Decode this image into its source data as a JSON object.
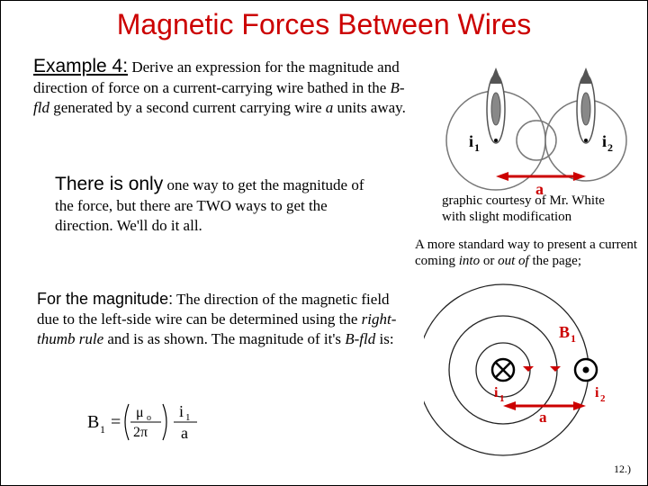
{
  "title": "Magnetic Forces Between Wires",
  "example": {
    "lead": "Example 4:",
    "body_html": "Derive an expression for the magnitude and direction of force on a current-carrying wire bathed in the <i>B-fld</i> generated by a second current carrying wire <i>a</i> units away."
  },
  "answer": {
    "lead": "There is only",
    "body_html": "one way to get the magnitude of the force, but there are TWO ways to get the direction. We'll do it all."
  },
  "magnitude": {
    "lead": "For the magnitude:",
    "body_html": "The direction of the magnetic field due to the left-side wire can be determined using the <i>right-thumb rule</i> and is as shown. The magnitude of it's <i>B-fld</i> is:"
  },
  "credit": {
    "line1": "graphic courtesy of Mr. White",
    "line2": "with slight modification"
  },
  "standard": {
    "text_html": "A more standard way to present a current coming <i>into</i> or <i>out of</i> the page;"
  },
  "formula": {
    "lhs": "B",
    "sub1": "1",
    "mu": "μ",
    "muSub": "o",
    "twopi": "2π",
    "i": "i",
    "iSub": "1",
    "a": "a"
  },
  "topFigure": {
    "colors": {
      "circle": "#555555",
      "arrow": "#cc0000",
      "label": "#000000"
    },
    "i1_html": "<b>i<sub>1</sub></b>",
    "i2_html": "<b>i<sub>2</sub></b>",
    "a_html": "<b>a</b>"
  },
  "bottomFigure": {
    "colors": {
      "circle": "#222222",
      "arrow": "#cc0000",
      "B1": "#cc0000"
    },
    "B1_html": "<b>B<sub>1</sub></b>",
    "i1_html": "<b>i<sub>1</sub></b>",
    "i2_html": "<b>i<sub>2</sub></b>",
    "a_html": "<b>a</b>"
  },
  "pagenum": "12.)"
}
